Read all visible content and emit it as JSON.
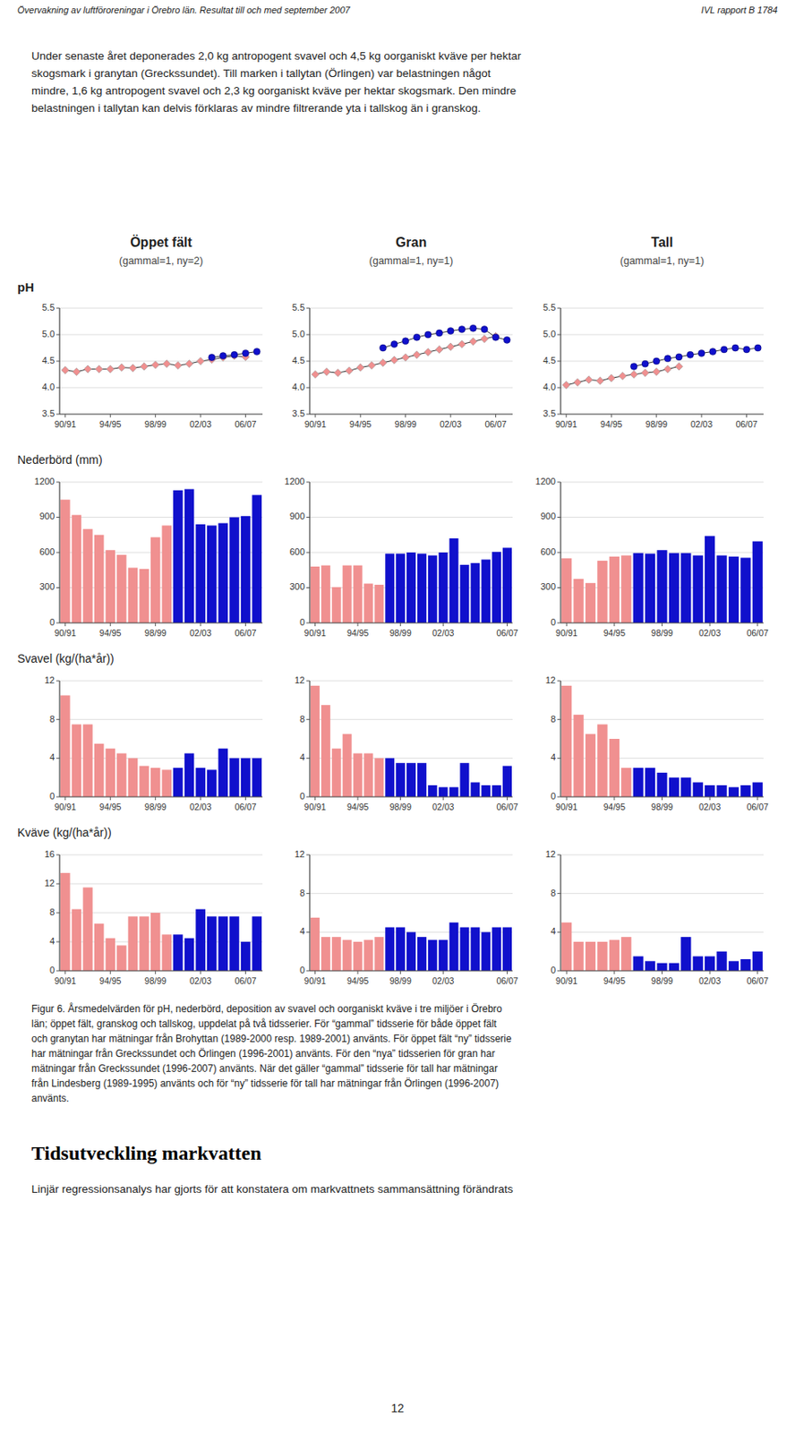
{
  "header": [
    "Övervakning av luftföroreningar i Örebro län. Resultat till och med september 2007",
    "IVL rapport B 1784"
  ],
  "intro": "Under senaste året deponerades 2,0 kg antropogent svavel och 4,5 kg oorganiskt kväve per hektar\nskogsmark i granytan (Greckssundet). Till marken i tallytan (Örlingen) var belastningen något\nmindre, 1,6 kg antropogent svavel och 2,3 kg oorganiskt kväve per hektar skogsmark. Den mindre\nbelastningen i tallytan kan delvis förklaras av mindre filtrerande yta i tallskog än i granskog.",
  "column_titles": [
    "Öppet fält",
    "Gran",
    "Tall"
  ],
  "column_subtitles": [
    "(gammal=1, ny=2)",
    "(gammal=1, ny=1)",
    "(gammal=1, ny=1)"
  ],
  "row_labels": [
    "pH",
    "Nederbörd (mm)",
    "Svavel (kg/(ha*år))",
    "Kväve (kg/(ha*år))"
  ],
  "caption": "Figur 6. Årsmedelvärden för pH, nederbörd, deposition av svavel och oorganiskt kväve i tre miljöer i Örebro\nlän; öppet fält, granskog och tallskog, uppdelat på två tidsserier. För “gammal” tidsserie för både öppet fält\noch granytan har mätningar från Brohyttan (1989-2000 resp. 1989-2001) använts. För öppet fält “ny” tidsserie\nhar mätningar från Greckssundet och Örlingen (1996-2001) använts. För den “nya” tidsserien för gran har\nmätningar från Greckssundet (1996-2007) använts. När det gäller “gammal” tidsserie för tall har mätningar\nfrån Lindesberg (1989-1995) använts och för “ny” tidsserie för tall har mätningar från Örlingen (1996-2007)\nanvänts.",
  "heading": "Tidsutveckling markvatten",
  "body_text": "Linjär regressionsanalys har gjorts för att konstatera om markvattnets sammansättning förändrats",
  "page_number": "12",
  "chart_data": [
    {
      "type": "line",
      "categories": [
        "90/91",
        null,
        null,
        null,
        "94/95",
        null,
        null,
        null,
        "98/99",
        null,
        null,
        null,
        "02/03",
        null,
        null,
        null,
        "06/07",
        null
      ],
      "series": [
        {
          "color": "#F09090",
          "marker": "diamond",
          "line_style": "solid",
          "values": [
            4.33,
            4.3,
            4.35,
            4.35,
            4.35,
            4.38,
            4.37,
            4.4,
            4.43,
            4.45,
            4.42,
            4.45,
            4.5,
            4.53,
            4.57,
            4.6,
            4.58,
            null
          ]
        },
        {
          "color": "#1010CC",
          "marker": "circle",
          "line_style": "solid",
          "values": [
            null,
            null,
            null,
            null,
            null,
            null,
            null,
            null,
            null,
            null,
            null,
            null,
            null,
            4.57,
            4.6,
            4.62,
            4.65,
            4.68
          ]
        }
      ],
      "ylim": [
        3.5,
        5.5
      ],
      "yticks": [
        3.5,
        {
          "value": 4,
          "label": "4.0"
        },
        4.5,
        {
          "value": 5,
          "label": "5.0"
        },
        5.5
      ],
      "grid": true
    },
    {
      "type": "line",
      "categories": [
        "90/91",
        null,
        null,
        null,
        "94/95",
        null,
        null,
        null,
        "98/99",
        null,
        null,
        null,
        "02/03",
        null,
        null,
        null,
        "06/07",
        null
      ],
      "series": [
        {
          "color": "#F09090",
          "marker": "diamond",
          "line_style": "solid",
          "values": [
            4.25,
            4.3,
            4.28,
            4.32,
            4.38,
            4.42,
            4.47,
            4.52,
            4.57,
            4.62,
            4.67,
            4.72,
            4.77,
            4.82,
            4.87,
            4.92,
            4.97,
            null
          ]
        },
        {
          "color": "#1010CC",
          "marker": "circle",
          "line_style": "solid",
          "values": [
            null,
            null,
            null,
            null,
            null,
            null,
            4.75,
            4.82,
            4.88,
            4.95,
            5.0,
            5.03,
            5.07,
            5.1,
            5.12,
            5.1,
            4.95,
            4.9
          ]
        }
      ],
      "ylim": [
        3.5,
        5.5
      ],
      "yticks": [
        3.5,
        {
          "value": 4,
          "label": "4.0"
        },
        4.5,
        {
          "value": 5,
          "label": "5.0"
        },
        5.5
      ],
      "grid": true
    },
    {
      "type": "line",
      "categories": [
        "90/91",
        null,
        null,
        null,
        "94/95",
        null,
        null,
        null,
        "98/99",
        null,
        null,
        null,
        "02/03",
        null,
        null,
        null,
        "06/07",
        null
      ],
      "series": [
        {
          "color": "#F09090",
          "marker": "diamond",
          "line_style": "solid",
          "values": [
            4.05,
            4.1,
            4.15,
            4.13,
            4.18,
            4.22,
            4.25,
            4.28,
            4.3,
            4.35,
            4.4,
            null,
            null,
            null,
            null,
            null,
            null,
            null
          ]
        },
        {
          "color": "#1010CC",
          "marker": "circle",
          "line_style": "solid",
          "values": [
            null,
            null,
            null,
            null,
            null,
            null,
            4.4,
            4.45,
            4.5,
            4.55,
            4.58,
            4.62,
            4.65,
            4.68,
            4.72,
            4.75,
            4.72,
            4.75
          ]
        }
      ],
      "ylim": [
        3.5,
        5.5
      ],
      "yticks": [
        3.5,
        {
          "value": 4,
          "label": "4.0"
        },
        4.5,
        {
          "value": 5,
          "label": "5.0"
        },
        5.5
      ],
      "grid": true
    },
    {
      "type": "bar",
      "categories": [
        "90/91",
        null,
        null,
        null,
        "94/95",
        null,
        null,
        null,
        "98/99",
        null,
        null,
        null,
        "02/03",
        null,
        null,
        null,
        "06/07",
        null
      ],
      "values": [
        1050,
        920,
        800,
        750,
        620,
        580,
        470,
        460,
        730,
        830,
        1130,
        1140,
        840,
        830,
        850,
        900,
        910,
        1090
      ],
      "colors": [
        "#F09090",
        "#F09090",
        "#F09090",
        "#F09090",
        "#F09090",
        "#F09090",
        "#F09090",
        "#F09090",
        "#F09090",
        "#F09090",
        "#1010CC",
        "#1010CC",
        "#1010CC",
        "#1010CC",
        "#1010CC",
        "#1010CC",
        "#1010CC",
        "#1010CC"
      ],
      "ylim": [
        0,
        1200
      ],
      "yticks": [
        0,
        300,
        600,
        900,
        1200
      ],
      "grid": true
    },
    {
      "type": "bar",
      "categories": [
        "90/91",
        null,
        null,
        null,
        "94/95",
        null,
        null,
        null,
        "98/99",
        null,
        null,
        null,
        "02/03",
        null,
        null,
        null,
        null,
        null,
        "06/07"
      ],
      "values": [
        480,
        490,
        305,
        490,
        490,
        335,
        325,
        590,
        590,
        600,
        590,
        575,
        600,
        720,
        495,
        510,
        540,
        605,
        640
      ],
      "colors": [
        "#F09090",
        "#F09090",
        "#F09090",
        "#F09090",
        "#F09090",
        "#F09090",
        "#F09090",
        "#1010CC",
        "#1010CC",
        "#1010CC",
        "#1010CC",
        "#1010CC",
        "#1010CC",
        "#1010CC",
        "#1010CC",
        "#1010CC",
        "#1010CC",
        "#1010CC",
        "#1010CC"
      ],
      "ylim": [
        0,
        1200
      ],
      "yticks": [
        0,
        300,
        600,
        900,
        1200
      ],
      "grid": true
    },
    {
      "type": "bar",
      "categories": [
        "90/91",
        null,
        null,
        null,
        "94/95",
        null,
        null,
        null,
        "98/99",
        null,
        null,
        null,
        "02/03",
        null,
        null,
        null,
        "06/07"
      ],
      "values": [
        550,
        375,
        340,
        530,
        565,
        575,
        595,
        590,
        620,
        595,
        595,
        575,
        740,
        575,
        565,
        555,
        695
      ],
      "colors": [
        "#F09090",
        "#F09090",
        "#F09090",
        "#F09090",
        "#F09090",
        "#F09090",
        "#1010CC",
        "#1010CC",
        "#1010CC",
        "#1010CC",
        "#1010CC",
        "#1010CC",
        "#1010CC",
        "#1010CC",
        "#1010CC",
        "#1010CC",
        "#1010CC"
      ],
      "ylim": [
        0,
        1200
      ],
      "yticks": [
        0,
        300,
        600,
        900,
        1200
      ],
      "grid": true
    },
    {
      "type": "bar",
      "categories": [
        "90/91",
        null,
        null,
        null,
        "94/95",
        null,
        null,
        null,
        "98/99",
        null,
        null,
        null,
        "02/03",
        null,
        null,
        null,
        "06/07",
        null
      ],
      "values": [
        10.5,
        7.5,
        7.5,
        5.5,
        5.0,
        4.5,
        4.0,
        3.2,
        3.0,
        2.8,
        3.0,
        4.5,
        3.0,
        2.8,
        5.0,
        4.0,
        4.0,
        4.0
      ],
      "colors": [
        "#F09090",
        "#F09090",
        "#F09090",
        "#F09090",
        "#F09090",
        "#F09090",
        "#F09090",
        "#F09090",
        "#F09090",
        "#F09090",
        "#1010CC",
        "#1010CC",
        "#1010CC",
        "#1010CC",
        "#1010CC",
        "#1010CC",
        "#1010CC",
        "#1010CC"
      ],
      "ylim": [
        0,
        12
      ],
      "yticks": [
        0,
        4,
        8,
        12
      ],
      "grid": true
    },
    {
      "type": "bar",
      "categories": [
        "90/91",
        null,
        null,
        null,
        "94/95",
        null,
        null,
        null,
        "98/99",
        null,
        null,
        null,
        "02/03",
        null,
        null,
        null,
        null,
        null,
        "06/07"
      ],
      "values": [
        11.5,
        9.5,
        5.0,
        6.5,
        4.5,
        4.5,
        4.0,
        4.0,
        3.5,
        3.5,
        3.5,
        1.2,
        1.0,
        1.0,
        3.5,
        1.5,
        1.2,
        1.2,
        3.2
      ],
      "colors": [
        "#F09090",
        "#F09090",
        "#F09090",
        "#F09090",
        "#F09090",
        "#F09090",
        "#F09090",
        "#1010CC",
        "#1010CC",
        "#1010CC",
        "#1010CC",
        "#1010CC",
        "#1010CC",
        "#1010CC",
        "#1010CC",
        "#1010CC",
        "#1010CC",
        "#1010CC",
        "#1010CC"
      ],
      "ylim": [
        0,
        12
      ],
      "yticks": [
        0,
        4,
        8,
        12
      ],
      "grid": true
    },
    {
      "type": "bar",
      "categories": [
        "90/91",
        null,
        null,
        null,
        "94/95",
        null,
        null,
        null,
        "98/99",
        null,
        null,
        null,
        "02/03",
        null,
        null,
        null,
        "06/07"
      ],
      "values": [
        11.5,
        8.5,
        6.5,
        7.5,
        6.0,
        3.0,
        3.0,
        3.0,
        2.5,
        2.0,
        2.0,
        1.5,
        1.2,
        1.2,
        1.0,
        1.2,
        1.5
      ],
      "colors": [
        "#F09090",
        "#F09090",
        "#F09090",
        "#F09090",
        "#F09090",
        "#F09090",
        "#1010CC",
        "#1010CC",
        "#1010CC",
        "#1010CC",
        "#1010CC",
        "#1010CC",
        "#1010CC",
        "#1010CC",
        "#1010CC",
        "#1010CC",
        "#1010CC"
      ],
      "ylim": [
        0,
        12
      ],
      "yticks": [
        0,
        4,
        8,
        12
      ],
      "grid": true
    },
    {
      "type": "bar",
      "categories": [
        "90/91",
        null,
        null,
        null,
        "94/95",
        null,
        null,
        null,
        "98/99",
        null,
        null,
        null,
        "02/03",
        null,
        null,
        null,
        "06/07",
        null
      ],
      "values": [
        13.5,
        8.5,
        11.5,
        6.5,
        4.5,
        3.5,
        7.5,
        7.5,
        8.0,
        5.0,
        5.0,
        4.5,
        8.5,
        7.5,
        7.5,
        7.5,
        4.0,
        7.5
      ],
      "colors": [
        "#F09090",
        "#F09090",
        "#F09090",
        "#F09090",
        "#F09090",
        "#F09090",
        "#F09090",
        "#F09090",
        "#F09090",
        "#F09090",
        "#1010CC",
        "#1010CC",
        "#1010CC",
        "#1010CC",
        "#1010CC",
        "#1010CC",
        "#1010CC",
        "#1010CC"
      ],
      "ylim": [
        0,
        16
      ],
      "yticks": [
        0,
        4,
        8,
        12,
        16
      ],
      "grid": true
    },
    {
      "type": "bar",
      "categories": [
        "90/91",
        null,
        null,
        null,
        "94/95",
        null,
        null,
        null,
        "98/99",
        null,
        null,
        null,
        "02/03",
        null,
        null,
        null,
        null,
        null,
        "06/07"
      ],
      "values": [
        5.5,
        3.5,
        3.5,
        3.2,
        3.0,
        3.2,
        3.5,
        4.5,
        4.5,
        4.0,
        3.5,
        3.2,
        3.2,
        5.0,
        4.5,
        4.5,
        4.0,
        4.5,
        4.5
      ],
      "colors": [
        "#F09090",
        "#F09090",
        "#F09090",
        "#F09090",
        "#F09090",
        "#F09090",
        "#F09090",
        "#1010CC",
        "#1010CC",
        "#1010CC",
        "#1010CC",
        "#1010CC",
        "#1010CC",
        "#1010CC",
        "#1010CC",
        "#1010CC",
        "#1010CC",
        "#1010CC",
        "#1010CC"
      ],
      "ylim": [
        0,
        12
      ],
      "yticks": [
        0,
        4,
        8,
        12
      ],
      "grid": true
    },
    {
      "type": "bar",
      "categories": [
        "90/91",
        null,
        null,
        null,
        "94/95",
        null,
        null,
        null,
        "98/99",
        null,
        null,
        null,
        "02/03",
        null,
        null,
        null,
        "06/07"
      ],
      "values": [
        5.0,
        3.0,
        3.0,
        3.0,
        3.2,
        3.5,
        1.5,
        1.0,
        0.8,
        0.8,
        3.5,
        1.5,
        1.5,
        2.0,
        1.0,
        1.2,
        2.0
      ],
      "colors": [
        "#F09090",
        "#F09090",
        "#F09090",
        "#F09090",
        "#F09090",
        "#F09090",
        "#1010CC",
        "#1010CC",
        "#1010CC",
        "#1010CC",
        "#1010CC",
        "#1010CC",
        "#1010CC",
        "#1010CC",
        "#1010CC",
        "#1010CC",
        "#1010CC"
      ],
      "ylim": [
        0,
        12
      ],
      "yticks": [
        0,
        4,
        8,
        12
      ],
      "grid": true
    }
  ]
}
